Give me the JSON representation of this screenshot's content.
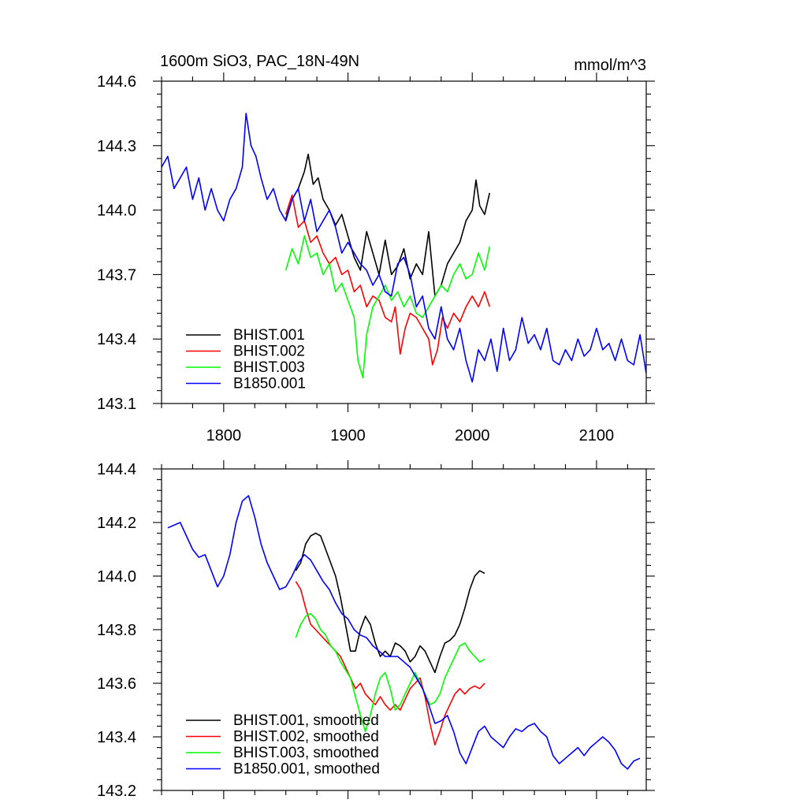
{
  "figure": {
    "title": "1600m SiO3, PAC_18N-49N",
    "units": "mmol/m^3"
  },
  "colors": {
    "BHIST.001": "#000000",
    "BHIST.002": "#ff0000",
    "BHIST.003": "#00ff00",
    "B1850.001": "#0000ff"
  },
  "chart_data": [
    {
      "type": "line",
      "title": "1600m SiO3, PAC_18N-49N",
      "units_label": "mmol/m^3",
      "xlim": [
        1750,
        2140
      ],
      "ylim": [
        143.1,
        144.6
      ],
      "xticks": [
        1800,
        1900,
        2000,
        2100
      ],
      "xtick_labels": [
        "1800",
        "1900",
        "2000",
        "2100"
      ],
      "yticks": [
        143.1,
        143.4,
        143.7,
        144.0,
        144.3,
        144.6
      ],
      "ytick_labels": [
        "143.1",
        "143.4",
        "143.7",
        "144.0",
        "144.3",
        "144.6"
      ],
      "grid": false,
      "legend_position": "bottom-left",
      "series": [
        {
          "name": "BHIST.001",
          "color": "#000000",
          "x": [
            1850,
            1855,
            1860,
            1865,
            1868,
            1872,
            1876,
            1880,
            1885,
            1890,
            1895,
            1900,
            1905,
            1910,
            1915,
            1920,
            1925,
            1930,
            1935,
            1940,
            1945,
            1950,
            1955,
            1960,
            1965,
            1970,
            1975,
            1980,
            1985,
            1990,
            1995,
            2000,
            2003,
            2006,
            2010,
            2014
          ],
          "y": [
            143.96,
            144.05,
            144.1,
            144.18,
            144.26,
            144.12,
            144.15,
            144.05,
            144.0,
            143.93,
            143.98,
            143.88,
            143.78,
            143.72,
            143.9,
            143.8,
            143.7,
            143.86,
            143.7,
            143.74,
            143.82,
            143.68,
            143.75,
            143.7,
            143.9,
            143.6,
            143.65,
            143.75,
            143.8,
            143.85,
            143.95,
            144.0,
            144.14,
            144.02,
            143.98,
            144.08
          ]
        },
        {
          "name": "BHIST.002",
          "color": "#ff0000",
          "x": [
            1850,
            1855,
            1860,
            1865,
            1870,
            1875,
            1880,
            1885,
            1890,
            1895,
            1900,
            1905,
            1910,
            1915,
            1920,
            1925,
            1930,
            1935,
            1938,
            1942,
            1946,
            1950,
            1955,
            1960,
            1965,
            1968,
            1972,
            1976,
            1980,
            1985,
            1990,
            1995,
            2000,
            2005,
            2010,
            2014
          ],
          "y": [
            143.98,
            144.07,
            143.92,
            143.95,
            143.85,
            143.88,
            143.8,
            143.75,
            143.78,
            143.7,
            143.72,
            143.62,
            143.65,
            143.55,
            143.6,
            143.58,
            143.5,
            143.48,
            143.55,
            143.33,
            143.45,
            143.52,
            143.5,
            143.45,
            143.4,
            143.28,
            143.35,
            143.5,
            143.45,
            143.52,
            143.48,
            143.55,
            143.6,
            143.55,
            143.62,
            143.55
          ]
        },
        {
          "name": "BHIST.003",
          "color": "#00ff00",
          "x": [
            1850,
            1855,
            1860,
            1865,
            1870,
            1875,
            1880,
            1885,
            1890,
            1895,
            1900,
            1905,
            1908,
            1912,
            1915,
            1920,
            1925,
            1930,
            1935,
            1940,
            1945,
            1950,
            1955,
            1960,
            1965,
            1970,
            1975,
            1980,
            1985,
            1990,
            1995,
            2000,
            2005,
            2010,
            2014
          ],
          "y": [
            143.72,
            143.82,
            143.75,
            143.88,
            143.78,
            143.8,
            143.7,
            143.75,
            143.62,
            143.66,
            143.58,
            143.5,
            143.3,
            143.22,
            143.42,
            143.55,
            143.6,
            143.65,
            143.58,
            143.62,
            143.55,
            143.6,
            143.52,
            143.5,
            143.55,
            143.6,
            143.65,
            143.62,
            143.7,
            143.75,
            143.68,
            143.7,
            143.8,
            143.72,
            143.83
          ]
        },
        {
          "name": "B1850.001",
          "color": "#0000ff",
          "x": [
            1750,
            1755,
            1760,
            1765,
            1770,
            1775,
            1780,
            1785,
            1790,
            1795,
            1800,
            1805,
            1810,
            1815,
            1818,
            1822,
            1826,
            1830,
            1835,
            1840,
            1845,
            1850,
            1855,
            1860,
            1865,
            1870,
            1875,
            1880,
            1885,
            1890,
            1895,
            1900,
            1905,
            1910,
            1915,
            1920,
            1925,
            1930,
            1935,
            1940,
            1945,
            1950,
            1955,
            1960,
            1965,
            1970,
            1975,
            1980,
            1985,
            1990,
            1995,
            2000,
            2005,
            2010,
            2015,
            2020,
            2025,
            2030,
            2035,
            2040,
            2045,
            2050,
            2055,
            2060,
            2065,
            2070,
            2075,
            2080,
            2085,
            2090,
            2095,
            2100,
            2105,
            2110,
            2115,
            2120,
            2125,
            2130,
            2135,
            2140
          ],
          "y": [
            144.2,
            144.25,
            144.1,
            144.15,
            144.2,
            144.05,
            144.15,
            144.0,
            144.1,
            144.0,
            143.95,
            144.05,
            144.1,
            144.2,
            144.45,
            144.3,
            144.25,
            144.15,
            144.05,
            144.1,
            144.0,
            143.95,
            144.05,
            144.1,
            143.95,
            144.05,
            143.9,
            143.95,
            144.0,
            143.92,
            143.8,
            143.85,
            143.8,
            143.75,
            143.72,
            143.65,
            143.7,
            143.62,
            143.6,
            143.75,
            143.78,
            143.7,
            143.55,
            143.6,
            143.45,
            143.4,
            143.55,
            143.4,
            143.35,
            143.45,
            143.3,
            143.2,
            143.35,
            143.3,
            143.4,
            143.25,
            143.45,
            143.3,
            143.35,
            143.5,
            143.38,
            143.42,
            143.35,
            143.45,
            143.3,
            143.28,
            143.35,
            143.3,
            143.4,
            143.32,
            143.35,
            143.45,
            143.35,
            143.38,
            143.3,
            143.4,
            143.3,
            143.28,
            143.42,
            143.24
          ]
        }
      ]
    },
    {
      "type": "line",
      "xlim": [
        1750,
        2140
      ],
      "ylim": [
        143.2,
        144.4
      ],
      "xticks": [
        1800,
        1900,
        2000,
        2100
      ],
      "xtick_labels": [],
      "yticks": [
        143.2,
        143.4,
        143.6,
        143.8,
        144.0,
        144.2,
        144.4
      ],
      "ytick_labels": [
        "143.2",
        "143.4",
        "143.6",
        "143.8",
        "144.0",
        "144.2",
        "144.4"
      ],
      "grid": false,
      "legend_position": "bottom-left",
      "series": [
        {
          "name": "BHIST.001, smoothed",
          "color": "#000000",
          "x": [
            1858,
            1862,
            1866,
            1870,
            1874,
            1878,
            1882,
            1886,
            1890,
            1894,
            1898,
            1902,
            1906,
            1910,
            1914,
            1918,
            1922,
            1926,
            1930,
            1934,
            1938,
            1942,
            1946,
            1950,
            1954,
            1958,
            1962,
            1966,
            1970,
            1974,
            1978,
            1982,
            1986,
            1990,
            1994,
            1998,
            2002,
            2006,
            2010
          ],
          "y": [
            144.02,
            144.05,
            144.12,
            144.15,
            144.16,
            144.15,
            144.1,
            144.05,
            144.0,
            143.92,
            143.82,
            143.72,
            143.72,
            143.8,
            143.85,
            143.82,
            143.75,
            143.7,
            143.72,
            143.7,
            143.75,
            143.74,
            143.72,
            143.68,
            143.7,
            143.74,
            143.72,
            143.68,
            143.64,
            143.7,
            143.75,
            143.76,
            143.78,
            143.82,
            143.88,
            143.95,
            144.0,
            144.02,
            144.01
          ]
        },
        {
          "name": "BHIST.002, smoothed",
          "color": "#ff0000",
          "x": [
            1858,
            1862,
            1866,
            1870,
            1874,
            1878,
            1882,
            1886,
            1890,
            1894,
            1898,
            1902,
            1906,
            1910,
            1914,
            1918,
            1922,
            1926,
            1930,
            1934,
            1938,
            1942,
            1946,
            1950,
            1954,
            1958,
            1962,
            1966,
            1970,
            1974,
            1978,
            1982,
            1986,
            1990,
            1994,
            1998,
            2002,
            2006,
            2010
          ],
          "y": [
            143.98,
            143.95,
            143.88,
            143.82,
            143.8,
            143.78,
            143.76,
            143.74,
            143.72,
            143.7,
            143.66,
            143.62,
            143.58,
            143.6,
            143.56,
            143.54,
            143.52,
            143.55,
            143.52,
            143.5,
            143.52,
            143.5,
            143.54,
            143.58,
            143.6,
            143.62,
            143.55,
            143.45,
            143.37,
            143.42,
            143.48,
            143.52,
            143.56,
            143.58,
            143.56,
            143.58,
            143.59,
            143.58,
            143.6
          ]
        },
        {
          "name": "BHIST.003, smoothed",
          "color": "#00ff00",
          "x": [
            1858,
            1862,
            1866,
            1870,
            1874,
            1878,
            1882,
            1886,
            1890,
            1894,
            1898,
            1902,
            1906,
            1910,
            1914,
            1918,
            1922,
            1926,
            1930,
            1934,
            1938,
            1942,
            1946,
            1950,
            1954,
            1958,
            1962,
            1966,
            1970,
            1974,
            1978,
            1982,
            1986,
            1990,
            1994,
            1998,
            2002,
            2006,
            2010
          ],
          "y": [
            143.77,
            143.82,
            143.85,
            143.86,
            143.84,
            143.8,
            143.78,
            143.74,
            143.72,
            143.68,
            143.65,
            143.62,
            143.55,
            143.48,
            143.42,
            143.48,
            143.56,
            143.62,
            143.64,
            143.58,
            143.5,
            143.52,
            143.56,
            143.6,
            143.64,
            143.6,
            143.56,
            143.52,
            143.53,
            143.56,
            143.62,
            143.66,
            143.7,
            143.74,
            143.75,
            143.72,
            143.7,
            143.68,
            143.69
          ]
        },
        {
          "name": "B1850.001, smoothed",
          "color": "#0000ff",
          "x": [
            1755,
            1760,
            1765,
            1770,
            1775,
            1780,
            1785,
            1790,
            1795,
            1800,
            1805,
            1810,
            1815,
            1820,
            1825,
            1830,
            1835,
            1840,
            1845,
            1850,
            1855,
            1860,
            1865,
            1870,
            1875,
            1880,
            1885,
            1890,
            1895,
            1900,
            1905,
            1910,
            1915,
            1920,
            1925,
            1930,
            1935,
            1940,
            1945,
            1950,
            1955,
            1960,
            1965,
            1970,
            1975,
            1980,
            1985,
            1990,
            1995,
            2000,
            2005,
            2010,
            2015,
            2020,
            2025,
            2030,
            2035,
            2040,
            2045,
            2050,
            2055,
            2060,
            2065,
            2070,
            2075,
            2080,
            2085,
            2090,
            2095,
            2100,
            2105,
            2110,
            2115,
            2120,
            2125,
            2130,
            2135
          ],
          "y": [
            144.18,
            144.19,
            144.2,
            144.15,
            144.1,
            144.07,
            144.08,
            144.02,
            143.96,
            144.0,
            144.08,
            144.2,
            144.28,
            144.3,
            144.22,
            144.12,
            144.05,
            144.0,
            143.95,
            143.96,
            144.0,
            144.05,
            144.08,
            144.06,
            144.02,
            143.98,
            143.95,
            143.9,
            143.86,
            143.84,
            143.8,
            143.78,
            143.77,
            143.74,
            143.72,
            143.7,
            143.7,
            143.7,
            143.68,
            143.66,
            143.62,
            143.58,
            143.52,
            143.45,
            143.46,
            143.48,
            143.42,
            143.34,
            143.3,
            143.36,
            143.42,
            143.44,
            143.4,
            143.38,
            143.36,
            143.4,
            143.43,
            143.42,
            143.44,
            143.45,
            143.42,
            143.4,
            143.33,
            143.3,
            143.32,
            143.34,
            143.36,
            143.33,
            143.36,
            143.38,
            143.4,
            143.38,
            143.35,
            143.3,
            143.28,
            143.31,
            143.32
          ]
        }
      ]
    }
  ]
}
